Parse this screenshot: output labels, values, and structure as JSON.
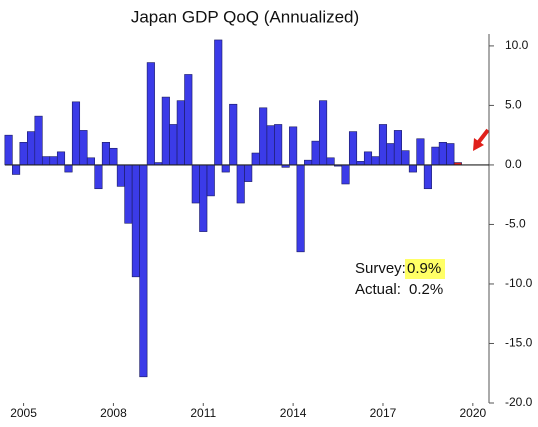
{
  "chart_data": {
    "type": "bar",
    "title": "Japan GDP QoQ (Annualized)",
    "x": [
      2004.5,
      2004.75,
      2005,
      2005.25,
      2005.5,
      2005.75,
      2006,
      2006.25,
      2006.5,
      2006.75,
      2007,
      2007.25,
      2007.5,
      2007.75,
      2008,
      2008.25,
      2008.5,
      2008.75,
      2009,
      2009.25,
      2009.5,
      2009.75,
      2010,
      2010.25,
      2010.5,
      2010.75,
      2011,
      2011.25,
      2011.5,
      2011.75,
      2012,
      2012.25,
      2012.5,
      2012.75,
      2013,
      2013.25,
      2013.5,
      2013.75,
      2014,
      2014.25,
      2014.5,
      2014.75,
      2015,
      2015.25,
      2015.5,
      2015.75,
      2016,
      2016.25,
      2016.5,
      2016.75,
      2017,
      2017.25,
      2017.5,
      2017.75,
      2018,
      2018.25,
      2018.5,
      2018.75,
      2019,
      2019.25,
      2019.5
    ],
    "values": [
      2.5,
      -0.8,
      1.9,
      2.8,
      4.1,
      0.7,
      0.7,
      1.1,
      -0.6,
      5.3,
      2.9,
      0.6,
      -2.0,
      1.9,
      1.4,
      -1.8,
      -4.9,
      -9.4,
      -17.8,
      8.6,
      0.2,
      5.7,
      3.4,
      5.4,
      7.6,
      -3.2,
      -5.6,
      -2.6,
      10.5,
      -0.6,
      5.1,
      -3.2,
      -1.4,
      1.0,
      4.8,
      3.3,
      3.4,
      -0.2,
      3.2,
      -7.3,
      0.4,
      2.0,
      5.4,
      0.6,
      -0.1,
      -1.6,
      2.8,
      0.3,
      1.1,
      0.7,
      3.4,
      1.8,
      2.9,
      1.2,
      -0.6,
      2.2,
      -2.0,
      1.5,
      1.9,
      1.8,
      0.2
    ],
    "bar_colors": [
      "#3b3be8",
      "#3b3be8",
      "#3b3be8",
      "#3b3be8",
      "#3b3be8",
      "#3b3be8",
      "#3b3be8",
      "#3b3be8",
      "#3b3be8",
      "#3b3be8",
      "#3b3be8",
      "#3b3be8",
      "#3b3be8",
      "#3b3be8",
      "#3b3be8",
      "#3b3be8",
      "#3b3be8",
      "#3b3be8",
      "#3b3be8",
      "#3b3be8",
      "#3b3be8",
      "#3b3be8",
      "#3b3be8",
      "#3b3be8",
      "#3b3be8",
      "#3b3be8",
      "#3b3be8",
      "#3b3be8",
      "#3b3be8",
      "#3b3be8",
      "#3b3be8",
      "#3b3be8",
      "#3b3be8",
      "#3b3be8",
      "#3b3be8",
      "#3b3be8",
      "#3b3be8",
      "#3b3be8",
      "#3b3be8",
      "#3b3be8",
      "#3b3be8",
      "#3b3be8",
      "#3b3be8",
      "#3b3be8",
      "#3b3be8",
      "#3b3be8",
      "#3b3be8",
      "#3b3be8",
      "#3b3be8",
      "#3b3be8",
      "#3b3be8",
      "#3b3be8",
      "#3b3be8",
      "#3b3be8",
      "#3b3be8",
      "#3b3be8",
      "#3b3be8",
      "#3b3be8",
      "#3b3be8",
      "#3b3be8",
      "#e0201b"
    ],
    "xlim": [
      2004.38,
      2020.54
    ],
    "xticks": [
      2005,
      2008,
      2011,
      2014,
      2017,
      2020
    ],
    "ylim": [
      -20,
      11
    ],
    "yticks": [
      {
        "value": 10,
        "label": "10.0"
      },
      {
        "value": 5,
        "label": "5.0"
      },
      {
        "value": 0,
        "label": "0.0"
      },
      {
        "value": -5,
        "label": "-5.0"
      },
      {
        "value": -10,
        "label": "-10.0"
      },
      {
        "value": -15,
        "label": "-15.0"
      },
      {
        "value": -20,
        "label": "-20.0"
      }
    ],
    "annotations": {
      "survey_label": "Survey:",
      "survey_value": "0.9%",
      "actual_label": "Actual:",
      "actual_value": "0.2%"
    }
  }
}
